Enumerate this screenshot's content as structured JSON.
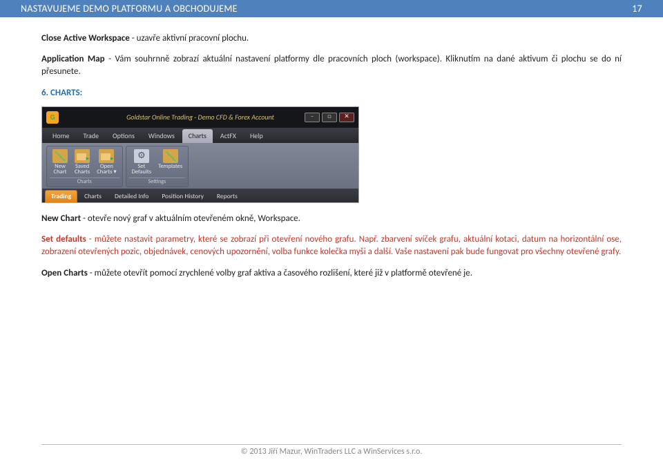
{
  "header": {
    "title": "NASTAVUJEME DEMO PLATFORMU A OBCHODUJEME",
    "pagenum": "17"
  },
  "p1": {
    "b": "Close Active Workspace",
    "rest": " - uzavře aktivní pracovní plochu."
  },
  "p2": {
    "b": "Application Map",
    "rest": " - Vám souhrnně zobrazí aktuální nastavení platformy dle pracovních ploch (workspace). Kliknutím na dané aktivum či plochu se do ní přesunete."
  },
  "section": "6.  CHARTS:",
  "app": {
    "title": "Goldstar Online Trading - Demo CFD & Forex Account",
    "logo": "G",
    "menu": [
      "Home",
      "Trade",
      "Options",
      "Windows",
      "Charts",
      "ActFX",
      "Help"
    ],
    "menu_active_idx": 4,
    "ribbon": {
      "group1": {
        "name": "Charts",
        "btns": [
          {
            "l1": "New",
            "l2": "Chart",
            "icon": "chart"
          },
          {
            "l1": "Saved",
            "l2": "Charts",
            "icon": "open"
          },
          {
            "l1": "Open",
            "l2": "Charts ▾",
            "icon": "open"
          }
        ]
      },
      "group2": {
        "name": "Settings",
        "btns": [
          {
            "l1": "Set",
            "l2": "Defaults",
            "icon": "gear"
          },
          {
            "l1": "Templates",
            "l2": "",
            "icon": "chart"
          }
        ]
      }
    },
    "tabs": [
      "Trading",
      "Charts",
      "Detailed Info",
      "Position History",
      "Reports"
    ],
    "tabs_active_idx": 0
  },
  "p3": {
    "b": "New Chart",
    "rest": " - otevře nový graf v aktuálním otevřeném okně, Workspace."
  },
  "p4": {
    "b": "Set defaults",
    "rest": " - můžete nastavit parametry, které se zobrazí při otevření nového grafu. Např. zbarvení svíček grafu, aktuální kotaci, datum na horizontální ose, zobrazení otevřených pozic, objednávek, cenových upozornění, volba funkce kolečka myši a další. Vaše nastavení pak bude fungovat pro všechny otevřené grafy."
  },
  "p5": {
    "b": "Open Charts",
    "rest": " - můžete otevřít pomocí zrychlené volby graf aktiva a časového rozlišení, které již v platformě otevřené je."
  },
  "footer": "© 2013 Jiří Mazur, WinTraders LLC a WinServices s.r.o."
}
